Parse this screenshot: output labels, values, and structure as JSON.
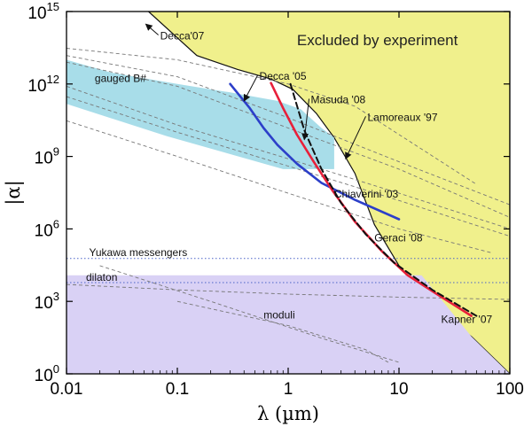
{
  "chart_data": {
    "type": "area",
    "title": "",
    "xlabel": "λ (µm)",
    "ylabel": "|α|",
    "x_scale": "log",
    "y_scale": "log",
    "xlim": [
      0.01,
      100
    ],
    "ylim": [
      1,
      1000000000000000.0
    ],
    "x_ticks": [
      {
        "value": 0.01,
        "label": "0.01"
      },
      {
        "value": 0.1,
        "label": "0.1"
      },
      {
        "value": 1,
        "label": "1"
      },
      {
        "value": 10,
        "label": "10"
      },
      {
        "value": 100,
        "label": "100"
      }
    ],
    "y_ticks": [
      {
        "value": 1,
        "label": "10",
        "exp": "0"
      },
      {
        "value": 1000.0,
        "label": "10",
        "exp": "3"
      },
      {
        "value": 1000000.0,
        "label": "10",
        "exp": "6"
      },
      {
        "value": 1000000000.0,
        "label": "10",
        "exp": "9"
      },
      {
        "value": 1000000000000.0,
        "label": "10",
        "exp": "12"
      },
      {
        "value": 1000000000000000.0,
        "label": "10",
        "exp": "15"
      }
    ],
    "grid": false,
    "colors": {
      "excluded": "#f0f08c",
      "gauged": "#a8dde9",
      "moduli": "#d9d1f5",
      "dashed_gray": "#777777",
      "dotted_blue": "#4a63c8",
      "blue_curve": "#2c3fc9",
      "red_curve": "#e8203a",
      "black": "#111111"
    },
    "regions": [
      {
        "name": "Excluded by experiment",
        "label": "Excluded by experiment",
        "points": [
          [
            0.055,
            1000000000000000.0
          ],
          [
            0.15,
            15000000000000.0
          ],
          [
            0.35,
            4000000000000.0
          ],
          [
            0.7,
            1600000000000.0
          ],
          [
            1.1,
            600000000000.0
          ],
          [
            1.8,
            60000000000.0
          ],
          [
            2.6,
            6000000000.0
          ],
          [
            4,
            200000000.0
          ],
          [
            6,
            1500000.0
          ],
          [
            10,
            30000.0
          ],
          [
            18,
            1000.0
          ],
          [
            45,
            35
          ],
          [
            100,
            1
          ],
          [
            100,
            1000000000000000.0
          ]
        ]
      },
      {
        "name": "gauged B#",
        "label": "gauged B#",
        "points": [
          [
            0.01,
            10000000000000.0
          ],
          [
            0.025,
            3000000000000.0
          ],
          [
            0.1,
            1000000000000.0
          ],
          [
            0.3,
            450000000000.0
          ],
          [
            0.8,
            200000000000.0
          ],
          [
            1.3,
            90000000000.0
          ],
          [
            2,
            15000000000.0
          ],
          [
            2.6,
            6000000000.0
          ],
          [
            2.6,
            300000000.0
          ],
          [
            0.9,
            300000000.0
          ],
          [
            0.08,
            7000000000.0
          ],
          [
            0.01,
            150000000000.0
          ]
        ]
      },
      {
        "name": "moduli",
        "label": "moduli",
        "points": [
          [
            0.01,
            12000.0
          ],
          [
            16,
            12000.0
          ],
          [
            45,
            35
          ],
          [
            100,
            1
          ],
          [
            0.01,
            1
          ]
        ]
      }
    ],
    "series": [
      {
        "name": "Decca '05",
        "style": "solid",
        "color": "#2c3fc9",
        "x": [
          0.3,
          0.45,
          0.6,
          0.8,
          1.2,
          2,
          4,
          10
        ],
        "y": [
          1000000000000.0,
          100000000000.0,
          15000000000.0,
          3000000000.0,
          500000000.0,
          80000000.0,
          16000000.0,
          2500000.0
        ]
      },
      {
        "name": "Masuda '08",
        "style": "solid",
        "color": "#e8203a",
        "x": [
          0.7,
          0.9,
          1.2,
          1.7,
          2.5,
          4,
          7,
          12,
          22,
          45
        ],
        "y": [
          1100000000000.0,
          100000000000.0,
          8000000000.0,
          600000000.0,
          40000000.0,
          2000000.0,
          120000.0,
          12000.0,
          2000.0,
          250
        ]
      },
      {
        "name": "Chiaverini '03",
        "style": "dashed",
        "color": "#111111",
        "x": [
          1.05,
          1.4,
          2,
          3,
          5,
          9,
          20,
          50
        ],
        "y": [
          1000000000000.0,
          12000000000.0,
          300000000.0,
          12000000.0,
          600000.0,
          40000.0,
          3000.0,
          250
        ]
      }
    ],
    "dashed_lines": [
      {
        "x": [
          0.01,
          0.1,
          1,
          4,
          50
        ],
        "y": [
          30000000000000.0,
          10000000000000.0,
          1000000000000.0,
          120000000000.0,
          70000000.0
        ]
      },
      {
        "x": [
          0.01,
          0.1,
          1,
          10,
          100
        ],
        "y": [
          15000000000000.0,
          2000000000000.0,
          40000000000.0,
          600000000.0,
          10000000.0
        ]
      },
      {
        "x": [
          0.01,
          0.1,
          1,
          10,
          100
        ],
        "y": [
          8000000000000.0,
          800000000000.0,
          15000000000.0,
          300000000.0,
          3000000.0
        ]
      },
      {
        "x": [
          0.01,
          0.1,
          1,
          10,
          100
        ],
        "y": [
          800000000000.0,
          20000000000.0,
          800000000.0,
          30000000.0,
          1000000.0
        ]
      },
      {
        "x": [
          0.01,
          0.1,
          1,
          10,
          100
        ],
        "y": [
          300000000000.0,
          10000000000.0,
          400000000.0,
          15000000.0,
          500000.0
        ]
      },
      {
        "x": [
          0.02,
          0.2,
          2,
          10
        ],
        "y": [
          30000.0,
          1000.0,
          30.0,
          3
        ]
      },
      {
        "x": [
          0.1,
          1,
          5,
          8
        ],
        "y": [
          1000.0,
          100.0,
          10.0,
          3
        ]
      },
      {
        "x": [
          0.01,
          0.1,
          1,
          10,
          70
        ],
        "y": [
          30000000000.0,
          1000000000.0,
          30000000.0,
          1000000.0,
          100000.0
        ]
      },
      {
        "x": [
          0.01,
          0.1,
          1,
          10,
          100
        ],
        "y": [
          5000.0,
          3000.0,
          2000.0,
          1500.0,
          1200.0
        ]
      }
    ],
    "dotted_lines": [
      {
        "x": [
          0.01,
          100
        ],
        "y": [
          60000.0,
          60000.0
        ]
      },
      {
        "x": [
          0.01,
          100
        ],
        "y": [
          6000.0,
          6000.0
        ]
      }
    ],
    "annotations": [
      {
        "text": "Decca'07",
        "x": 0.07,
        "y": 70000000000000.0,
        "arrow_to": [
          0.052,
          300000000000000.0
        ]
      },
      {
        "text": "gauged B#",
        "x": 0.018,
        "y": 1200000000000.0
      },
      {
        "text": "Decca '05",
        "x": 0.55,
        "y": 1500000000000.0,
        "arrow_to": [
          0.4,
          200000000000.0
        ]
      },
      {
        "text": "Masuda '08",
        "x": 1.6,
        "y": 160000000000.0,
        "arrow_to": [
          1.4,
          5000000000.0
        ]
      },
      {
        "text": "Lamoreaux '97",
        "x": 5.2,
        "y": 30000000000.0,
        "arrow_to": [
          3.3,
          800000000.0
        ]
      },
      {
        "text": "Chiaverini '03",
        "x": 2.6,
        "y": 20000000.0
      },
      {
        "text": "Yukawa messengers",
        "x": 0.016,
        "y": 75000.0
      },
      {
        "text": "dilaton",
        "x": 0.015,
        "y": 7000.0
      },
      {
        "text": "moduli",
        "x": 0.6,
        "y": 200.0
      },
      {
        "text": "Geraci '08",
        "x": 6,
        "y": 300000.0
      },
      {
        "text": "Kapner '07",
        "x": 24,
        "y": 130.0
      },
      {
        "text": "Excluded by experiment",
        "x": 1.2,
        "y": 40000000000000.0,
        "style": "big"
      }
    ]
  }
}
